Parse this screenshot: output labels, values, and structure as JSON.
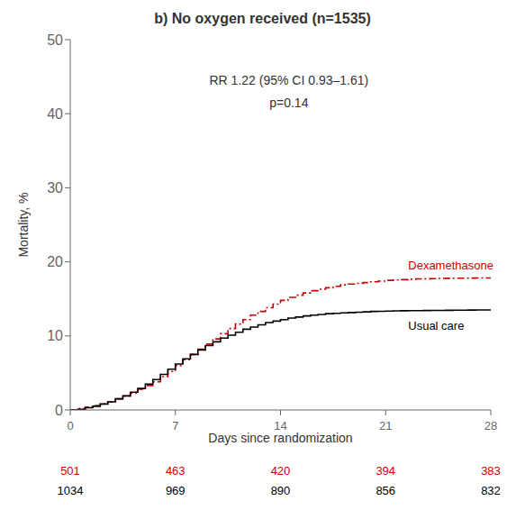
{
  "chart_data": {
    "type": "step",
    "title": "b) No oxygen received (n=1535)",
    "annotations": [
      "RR 1.22 (95% CI 0.93–1.61)",
      "p=0.14"
    ],
    "xlabel": "Days since randomization",
    "ylabel": "Mortality, %",
    "xlim": [
      0,
      28
    ],
    "ylim": [
      0,
      50
    ],
    "xticks": [
      0,
      7,
      14,
      21,
      28
    ],
    "yticks": [
      0,
      10,
      20,
      30,
      40,
      50
    ],
    "grid": false,
    "x": [
      0,
      0.5,
      1,
      1.5,
      2,
      2.5,
      3,
      3.5,
      4,
      4.5,
      5,
      5.5,
      6,
      6.5,
      7,
      7.5,
      8,
      8.5,
      9,
      9.5,
      10,
      10.5,
      11,
      11.5,
      12,
      12.5,
      13,
      13.5,
      14,
      14.5,
      15,
      15.5,
      16,
      16.5,
      17,
      17.5,
      18,
      18.5,
      19,
      19.5,
      20,
      20.5,
      21,
      21.5,
      22,
      22.5,
      23,
      23.5,
      24,
      24.5,
      25,
      25.5,
      26,
      26.5,
      27,
      27.5,
      28
    ],
    "at_risk_x": [
      0,
      7,
      14,
      21,
      28
    ],
    "series": [
      {
        "name": "Dexamethasone",
        "color": "#cc0000",
        "line_style": "dashdot",
        "values": [
          0,
          0.2,
          0.4,
          0.6,
          0.8,
          1.1,
          1.5,
          1.9,
          2.3,
          2.8,
          3.3,
          3.8,
          4.5,
          5.2,
          6.0,
          6.8,
          7.5,
          8.2,
          8.9,
          9.6,
          10.3,
          11.0,
          11.6,
          12.2,
          12.8,
          13.3,
          13.8,
          14.3,
          14.8,
          15.2,
          15.5,
          15.8,
          16.1,
          16.3,
          16.5,
          16.7,
          16.9,
          17.0,
          17.1,
          17.2,
          17.3,
          17.4,
          17.5,
          17.55,
          17.6,
          17.65,
          17.7,
          17.72,
          17.74,
          17.76,
          17.78,
          17.79,
          17.8,
          17.81,
          17.82,
          17.83,
          17.84
        ],
        "at_risk": [
          501,
          463,
          420,
          394,
          383
        ]
      },
      {
        "name": "Usual care",
        "color": "#000000",
        "line_style": "solid",
        "values": [
          0,
          0.1,
          0.3,
          0.5,
          0.8,
          1.1,
          1.5,
          1.9,
          2.4,
          2.9,
          3.5,
          4.1,
          4.8,
          5.5,
          6.2,
          6.9,
          7.5,
          8.1,
          8.7,
          9.2,
          9.7,
          10.1,
          10.5,
          10.9,
          11.2,
          11.5,
          11.8,
          12.0,
          12.2,
          12.4,
          12.55,
          12.7,
          12.8,
          12.9,
          13.0,
          13.05,
          13.1,
          13.15,
          13.2,
          13.25,
          13.3,
          13.33,
          13.36,
          13.38,
          13.4,
          13.41,
          13.42,
          13.43,
          13.44,
          13.45,
          13.46,
          13.47,
          13.48,
          13.49,
          13.5,
          13.51,
          13.52
        ],
        "at_risk": [
          1034,
          969,
          890,
          856,
          832
        ]
      }
    ]
  }
}
